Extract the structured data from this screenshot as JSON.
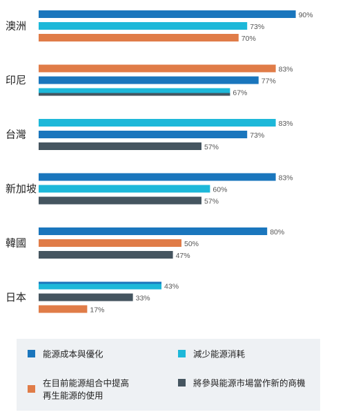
{
  "colors": {
    "cost": "#1a76bd",
    "reduce": "#1db8d9",
    "renewable": "#e07c48",
    "business": "#455560",
    "legend_bg": "#eef1f4"
  },
  "chart_data": {
    "type": "bar",
    "orientation": "horizontal",
    "xlim": [
      0,
      100
    ],
    "value_suffix": "%",
    "grid": false,
    "legend_position": "bottom",
    "legend": [
      {
        "key": "cost",
        "lines": [
          "能源成本與優化"
        ]
      },
      {
        "key": "reduce",
        "lines": [
          "減少能源消耗"
        ]
      },
      {
        "key": "renewable",
        "lines": [
          "在目前能源組合中提高",
          "再生能源的使用"
        ]
      },
      {
        "key": "business",
        "lines": [
          "將參與能源市場當作新的商機"
        ]
      }
    ],
    "groups": [
      {
        "name": "澳洲",
        "bars": [
          {
            "key": "cost",
            "value": 90
          },
          {
            "key": "reduce",
            "value": 73
          },
          {
            "key": "renewable",
            "value": 70
          }
        ]
      },
      {
        "name": "印尼",
        "bars": [
          {
            "key": "renewable",
            "value": 83
          },
          {
            "key": "cost",
            "value": 77
          },
          {
            "key": "reduce",
            "value": 67,
            "overlay": "business"
          }
        ]
      },
      {
        "name": "台灣",
        "bars": [
          {
            "key": "reduce",
            "value": 83
          },
          {
            "key": "cost",
            "value": 73
          },
          {
            "key": "business",
            "value": 57
          }
        ]
      },
      {
        "name": "新加坡",
        "bars": [
          {
            "key": "cost",
            "value": 83
          },
          {
            "key": "reduce",
            "value": 60
          },
          {
            "key": "business",
            "value": 57
          }
        ]
      },
      {
        "name": "韓國",
        "bars": [
          {
            "key": "cost",
            "value": 80
          },
          {
            "key": "renewable",
            "value": 50
          },
          {
            "key": "business",
            "value": 47
          }
        ]
      },
      {
        "name": "日本",
        "bars": [
          {
            "key": "reduce",
            "value": 43,
            "overlay": "cost"
          },
          {
            "key": "business",
            "value": 33
          },
          {
            "key": "renewable",
            "value": 17
          }
        ]
      }
    ]
  }
}
